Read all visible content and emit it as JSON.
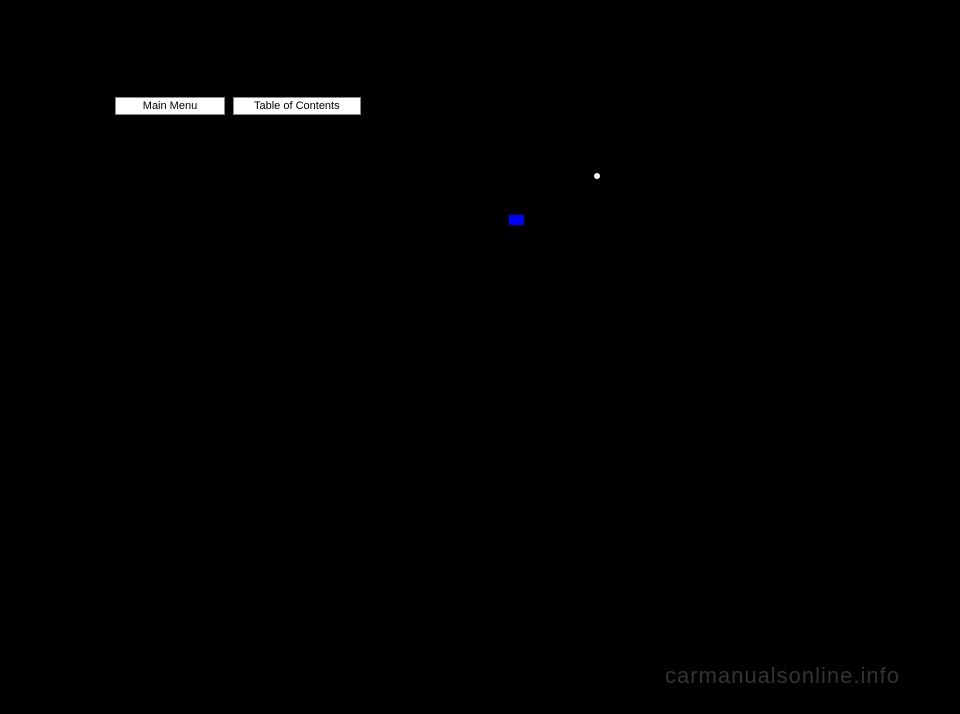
{
  "nav": {
    "main_menu": "Main Menu",
    "table_of_contents": "Table of Contents"
  },
  "watermark": "carmanualsonline.info",
  "colors": {
    "background": "#000000",
    "button_bg": "#ffffff",
    "button_text": "#000000",
    "bullet": "#ffffff",
    "blue_mark": "#0000ff",
    "watermark_text": "#333333"
  }
}
